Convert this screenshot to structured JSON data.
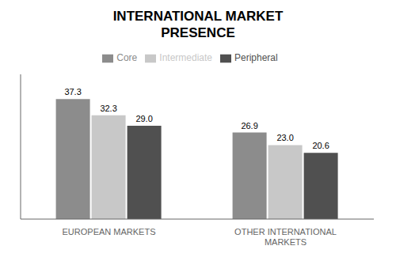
{
  "chart_data": {
    "type": "bar",
    "title": "INTERNATIONAL MARKET\nPRESENCE",
    "categories": [
      "EUROPEAN MARKETS",
      "OTHER INTERNATIONAL\nMARKETS"
    ],
    "series": [
      {
        "name": "Core",
        "color": "#8c8c8c",
        "values": [
          37.3,
          26.9
        ],
        "value_labels": [
          "37.3",
          "26.9"
        ]
      },
      {
        "name": "Intermediate",
        "color": "#c8c8c8",
        "values": [
          32.3,
          23.0
        ],
        "value_labels": [
          "32.3",
          "23.0"
        ]
      },
      {
        "name": "Peripheral",
        "color": "#505050",
        "values": [
          29.0,
          20.6
        ],
        "value_labels": [
          "29.0",
          "20.6"
        ]
      }
    ],
    "ylim": [
      0,
      45
    ],
    "grid": false,
    "legend": "top",
    "data_labels": true,
    "tick_labels": "x"
  }
}
